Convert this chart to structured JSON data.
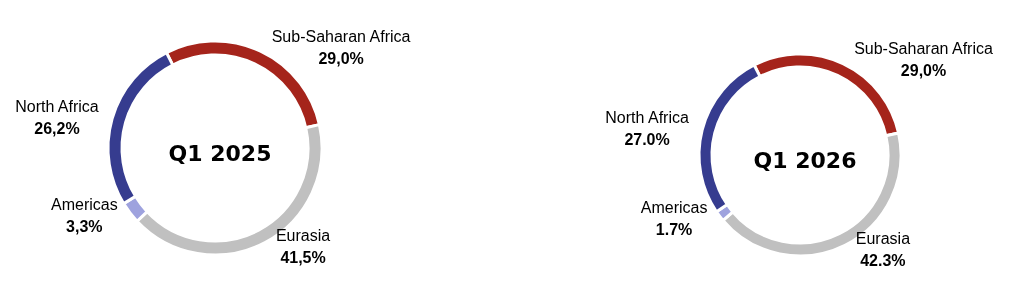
{
  "chart_data": [
    {
      "type": "donut",
      "title": "Q1 2025",
      "categories": [
        "Sub-Saharan Africa",
        "Eurasia",
        "Americas",
        "North Africa"
      ],
      "values": [
        29.0,
        41.5,
        3.3,
        26.2
      ],
      "value_labels": [
        "29,0%",
        "41,5%",
        "3,3%",
        "26,2%"
      ],
      "colors": [
        "#a5241b",
        "#c0c0c0",
        "#9ea2de",
        "#363c8f"
      ]
    },
    {
      "type": "donut",
      "title": "Q1 2026",
      "categories": [
        "Sub-Saharan Africa",
        "Eurasia",
        "Americas",
        "North Africa"
      ],
      "values": [
        29.0,
        42.3,
        1.7,
        27.0
      ],
      "value_labels": [
        "29,0%",
        "42.3%",
        "1.7%",
        "27.0%"
      ],
      "colors": [
        "#a5241b",
        "#c0c0c0",
        "#9ea2de",
        "#363c8f"
      ]
    }
  ]
}
